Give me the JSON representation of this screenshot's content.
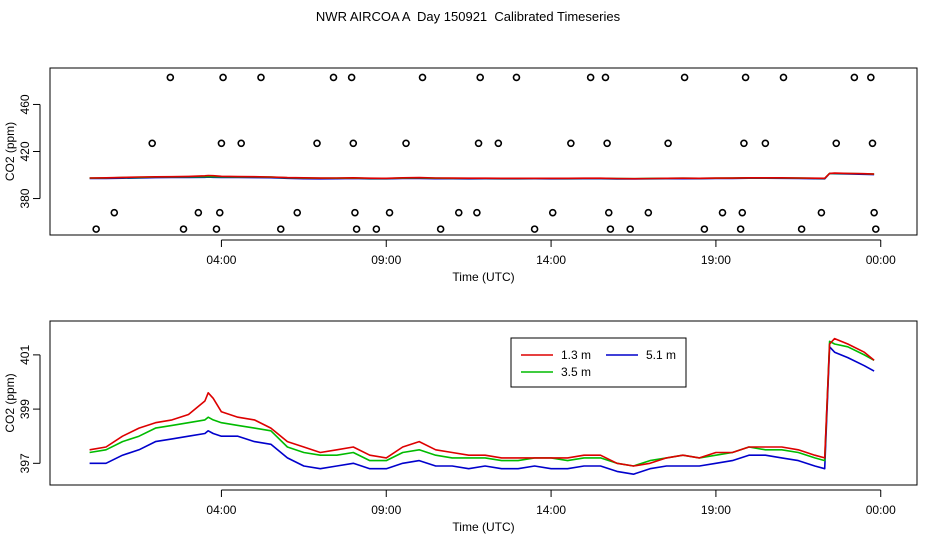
{
  "title": "NWR AIRCOA A  Day 150921  Calibrated Timeseries",
  "colors": {
    "s13": "#dd0000",
    "s35": "#00bb00",
    "s51": "#0000cc",
    "axis": "#000000"
  },
  "chart_data": [
    {
      "type": "scatter+line",
      "name": "top-panel",
      "xlabel": "Time (UTC)",
      "ylabel": "CO2 (ppm)",
      "xlim": [
        -1.2,
        25.1
      ],
      "ylim": [
        349,
        491
      ],
      "xticks": [
        4,
        9,
        14,
        19,
        24
      ],
      "xtick_labels": [
        "04:00",
        "09:00",
        "14:00",
        "19:00",
        "00:00"
      ],
      "yticks": [
        380,
        420,
        460
      ],
      "ytick_labels": [
        "380",
        "420",
        "460"
      ],
      "calibration_points": {
        "marker": "open-circle",
        "points": [
          [
            0.2,
            354
          ],
          [
            0.75,
            368
          ],
          [
            1.9,
            427
          ],
          [
            2.45,
            483
          ],
          [
            2.85,
            354
          ],
          [
            3.3,
            368
          ],
          [
            3.85,
            354
          ],
          [
            3.95,
            368
          ],
          [
            4.0,
            427
          ],
          [
            4.05,
            483
          ],
          [
            4.6,
            427
          ],
          [
            5.2,
            483
          ],
          [
            5.8,
            354
          ],
          [
            6.3,
            368
          ],
          [
            6.9,
            427
          ],
          [
            7.4,
            483
          ],
          [
            7.95,
            483
          ],
          [
            8.0,
            427
          ],
          [
            8.05,
            368
          ],
          [
            8.1,
            354
          ],
          [
            8.7,
            354
          ],
          [
            9.1,
            368
          ],
          [
            9.6,
            427
          ],
          [
            10.1,
            483
          ],
          [
            10.65,
            354
          ],
          [
            11.2,
            368
          ],
          [
            11.75,
            368
          ],
          [
            11.8,
            427
          ],
          [
            11.85,
            483
          ],
          [
            12.4,
            427
          ],
          [
            12.95,
            483
          ],
          [
            13.5,
            354
          ],
          [
            14.05,
            368
          ],
          [
            14.6,
            427
          ],
          [
            15.2,
            483
          ],
          [
            15.65,
            483
          ],
          [
            15.7,
            427
          ],
          [
            15.75,
            368
          ],
          [
            15.8,
            354
          ],
          [
            16.4,
            354
          ],
          [
            16.95,
            368
          ],
          [
            17.55,
            427
          ],
          [
            18.05,
            483
          ],
          [
            18.65,
            354
          ],
          [
            19.2,
            368
          ],
          [
            19.75,
            354
          ],
          [
            19.8,
            368
          ],
          [
            19.85,
            427
          ],
          [
            19.9,
            483
          ],
          [
            20.5,
            427
          ],
          [
            21.05,
            483
          ],
          [
            21.6,
            354
          ],
          [
            22.2,
            368
          ],
          [
            22.65,
            427
          ],
          [
            23.2,
            483
          ],
          [
            23.7,
            483
          ],
          [
            23.75,
            427
          ],
          [
            23.8,
            368
          ],
          [
            23.85,
            354
          ]
        ]
      },
      "series_ref": "bottom-panel"
    },
    {
      "type": "line",
      "name": "bottom-panel",
      "xlabel": "Time (UTC)",
      "ylabel": "CO2 (ppm)",
      "xlim": [
        -1.2,
        25.1
      ],
      "ylim": [
        396.2,
        402.25
      ],
      "xticks": [
        4,
        9,
        14,
        19,
        24
      ],
      "xtick_labels": [
        "04:00",
        "09:00",
        "14:00",
        "19:00",
        "00:00"
      ],
      "yticks": [
        397,
        399,
        401
      ],
      "ytick_labels": [
        "397",
        "399",
        "401"
      ],
      "legend": {
        "placement": "top-center",
        "entries": [
          "1.3 m",
          "5.1 m",
          "3.5 m"
        ]
      },
      "x": [
        0,
        0.5,
        1,
        1.5,
        2,
        2.5,
        3,
        3.5,
        3.6,
        3.75,
        4,
        4.5,
        5,
        5.5,
        6,
        6.5,
        7,
        7.5,
        8,
        8.5,
        9,
        9.5,
        10,
        10.5,
        11,
        11.5,
        12,
        12.5,
        13,
        13.5,
        14,
        14.5,
        15,
        15.5,
        16,
        16.5,
        17,
        17.5,
        18,
        18.5,
        19,
        19.5,
        20,
        20.5,
        21,
        21.5,
        22,
        22.3,
        22.45,
        22.6,
        23,
        23.5,
        23.8
      ],
      "series": [
        {
          "name": "1.3 m",
          "key": "s13",
          "values": [
            397.5,
            397.6,
            398.0,
            398.3,
            398.5,
            398.6,
            398.8,
            399.3,
            399.6,
            399.4,
            398.9,
            398.7,
            398.6,
            398.3,
            397.8,
            397.6,
            397.4,
            397.5,
            397.6,
            397.3,
            397.2,
            397.6,
            397.8,
            397.5,
            397.4,
            397.3,
            397.3,
            397.2,
            397.2,
            397.2,
            397.2,
            397.2,
            397.3,
            397.3,
            397.0,
            396.9,
            397.0,
            397.2,
            397.3,
            397.2,
            397.4,
            397.4,
            397.6,
            397.6,
            397.6,
            397.5,
            397.3,
            397.2,
            401.4,
            401.6,
            401.4,
            401.1,
            400.8
          ]
        },
        {
          "name": "3.5 m",
          "key": "s35",
          "values": [
            397.4,
            397.5,
            397.8,
            398.0,
            398.3,
            398.4,
            398.5,
            398.6,
            398.7,
            398.6,
            398.5,
            398.4,
            398.3,
            398.2,
            397.6,
            397.4,
            397.3,
            397.3,
            397.4,
            397.1,
            397.1,
            397.4,
            397.5,
            397.3,
            397.2,
            397.2,
            397.2,
            397.1,
            397.1,
            397.2,
            397.2,
            397.1,
            397.2,
            397.2,
            397.0,
            396.9,
            397.1,
            397.2,
            397.3,
            397.2,
            397.3,
            397.4,
            397.6,
            397.5,
            397.5,
            397.4,
            397.2,
            397.1,
            401.5,
            401.4,
            401.3,
            401.0,
            400.8
          ]
        },
        {
          "name": "5.1 m",
          "key": "s51",
          "values": [
            397.0,
            397.0,
            397.3,
            397.5,
            397.8,
            397.9,
            398.0,
            398.1,
            398.2,
            398.1,
            398.0,
            398.0,
            397.8,
            397.7,
            397.2,
            396.9,
            396.8,
            396.9,
            397.0,
            396.8,
            396.8,
            397.0,
            397.1,
            396.9,
            396.9,
            396.8,
            396.9,
            396.8,
            396.8,
            396.9,
            396.8,
            396.8,
            396.9,
            396.9,
            396.7,
            396.6,
            396.8,
            396.9,
            396.9,
            396.9,
            397.0,
            397.1,
            397.3,
            397.3,
            397.2,
            397.1,
            396.9,
            396.8,
            401.3,
            401.1,
            400.9,
            400.6,
            400.4
          ]
        }
      ]
    }
  ]
}
